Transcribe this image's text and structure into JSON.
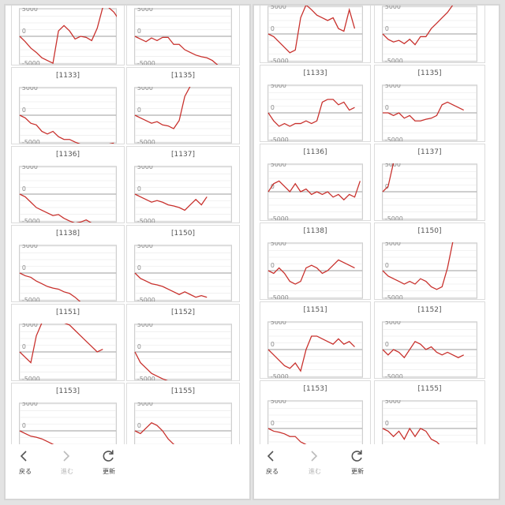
{
  "axis": {
    "ticks": [
      "5000",
      "0",
      "-5000"
    ],
    "line_color": "#c8302c",
    "zero_color": "#9e9e9e"
  },
  "nav": {
    "back_label": "戻る",
    "forward_label": "進む",
    "refresh_label": "更新"
  },
  "panels": [
    {
      "charts": [
        {
          "label": "",
          "values": [
            0,
            -1000,
            -2200,
            -3000,
            -4000,
            -4500,
            -5000,
            1000,
            2000,
            1000,
            -500,
            0,
            -200,
            -800,
            1500,
            5800,
            5500,
            4500,
            3000,
            1500,
            2000
          ]
        },
        {
          "label": "",
          "values": [
            0,
            -500,
            -1000,
            -300,
            -800,
            -200,
            -200,
            -1500,
            -1500,
            -2500,
            -3000,
            -3500,
            -3800,
            -4000,
            -4500,
            -5500,
            -6000,
            -6500
          ]
        },
        {
          "label": "[1133]",
          "values": [
            0,
            -500,
            -1500,
            -1800,
            -3000,
            -3500,
            -3000,
            -4000,
            -4500,
            -4500,
            -5000,
            -5800,
            -6000,
            -6200,
            -6200,
            -6000,
            -6200,
            -5200
          ]
        },
        {
          "label": "[1135]",
          "values": [
            0,
            -500,
            -1000,
            -1500,
            -1200,
            -1800,
            -2000,
            -2500,
            -1000,
            3500,
            7000,
            7000,
            7000,
            7000,
            7000,
            7000
          ]
        },
        {
          "label": "[1136]",
          "values": [
            0,
            -500,
            -1500,
            -2500,
            -3000,
            -3500,
            -4000,
            -3800,
            -4500,
            -5000,
            -5500,
            -5200,
            -4800,
            -5500,
            -5600
          ]
        },
        {
          "label": "[1137]",
          "values": [
            0,
            -500,
            -1000,
            -1500,
            -1200,
            -1500,
            -2000,
            -2200,
            -2500,
            -3000,
            -2000,
            -1000,
            -2000,
            -500
          ]
        },
        {
          "label": "[1138]",
          "values": [
            0,
            -500,
            -800,
            -1500,
            -2000,
            -2500,
            -2800,
            -3000,
            -3500,
            -3800,
            -4500,
            -5500,
            -6000
          ]
        },
        {
          "label": "[1150]",
          "values": [
            0,
            -1000,
            -1500,
            -2000,
            -2200,
            -2500,
            -3000,
            -3500,
            -4000,
            -3500,
            -4000,
            -4500,
            -4200,
            -4500
          ]
        },
        {
          "label": "[1151]",
          "values": [
            0,
            -1000,
            -2000,
            3000,
            7000,
            7000,
            7000,
            7000,
            7000,
            5000,
            4000,
            3000,
            2000,
            1000,
            0,
            500
          ]
        },
        {
          "label": "[1152]",
          "values": [
            0,
            -2000,
            -3000,
            -4000,
            -4500,
            -5000,
            -5500,
            -6000,
            -6500,
            -6500,
            -6500
          ]
        },
        {
          "label": "[1153]",
          "values": [
            0,
            -500,
            -1000,
            -1200,
            -1500,
            -2000,
            -2500,
            -3000,
            -3500
          ]
        },
        {
          "label": "[1155]",
          "values": [
            0,
            -500,
            500,
            1500,
            1000,
            0,
            -1500,
            -2500,
            -3000
          ]
        }
      ]
    },
    {
      "charts": [
        {
          "label": "",
          "values": [
            0,
            -500,
            -1500,
            -2500,
            -3500,
            -3000,
            3000,
            5500,
            4500,
            3500,
            3000,
            2500,
            3000,
            1000,
            500,
            4500,
            1000
          ]
        },
        {
          "label": "",
          "values": [
            0,
            -1000,
            -1500,
            -1200,
            -1800,
            -1000,
            -2000,
            -500,
            -500,
            1000,
            2000,
            3000,
            4000,
            7000
          ]
        },
        {
          "label": "[1133]",
          "values": [
            0,
            -1500,
            -2500,
            -2000,
            -2500,
            -2000,
            -2000,
            -1500,
            -2000,
            -1500,
            2000,
            2500,
            2500,
            1500,
            2000,
            500,
            1000
          ]
        },
        {
          "label": "[1135]",
          "values": [
            0,
            0,
            -500,
            0,
            -1000,
            -500,
            -1500,
            -1500,
            -1200,
            -1000,
            -500,
            1500,
            2000,
            1500,
            1000,
            500
          ]
        },
        {
          "label": "[1136]",
          "values": [
            0,
            1500,
            2000,
            1000,
            0,
            1500,
            0,
            500,
            -500,
            0,
            -500,
            0,
            -1000,
            -500,
            -1500,
            -500,
            -1000,
            2000
          ]
        },
        {
          "label": "[1137]",
          "values": [
            0,
            1000,
            7000,
            7000,
            7000,
            7000,
            7000,
            6500,
            6000,
            6500,
            6000
          ]
        },
        {
          "label": "[1138]",
          "values": [
            0,
            -500,
            500,
            -500,
            -2000,
            -2500,
            -2000,
            500,
            1000,
            500,
            -500,
            0,
            1000,
            2000,
            1500,
            1000,
            500
          ]
        },
        {
          "label": "[1150]",
          "values": [
            0,
            -1000,
            -1500,
            -2000,
            -2500,
            -2000,
            -2500,
            -1500,
            -2000,
            -3000,
            -3500,
            -3000,
            500,
            7000
          ]
        },
        {
          "label": "[1151]",
          "values": [
            0,
            -1000,
            -2000,
            -3000,
            -3500,
            -2500,
            -4000,
            0,
            2500,
            2500,
            2000,
            1500,
            1000,
            2000,
            1000,
            1500,
            500
          ]
        },
        {
          "label": "[1152]",
          "values": [
            0,
            -1000,
            0,
            -500,
            -1500,
            0,
            1500,
            1000,
            0,
            500,
            -500,
            -1000,
            -500,
            -1000,
            -1500,
            -1000
          ]
        },
        {
          "label": "[1153]",
          "values": [
            0,
            -500,
            -700,
            -1000,
            -1500,
            -1500,
            -2500,
            -3000,
            -4000
          ]
        },
        {
          "label": "[1155]",
          "values": [
            0,
            -500,
            -1500,
            -500,
            -2000,
            0,
            -1500,
            0,
            -500,
            -2000,
            -2500,
            -3500
          ]
        }
      ]
    }
  ]
}
